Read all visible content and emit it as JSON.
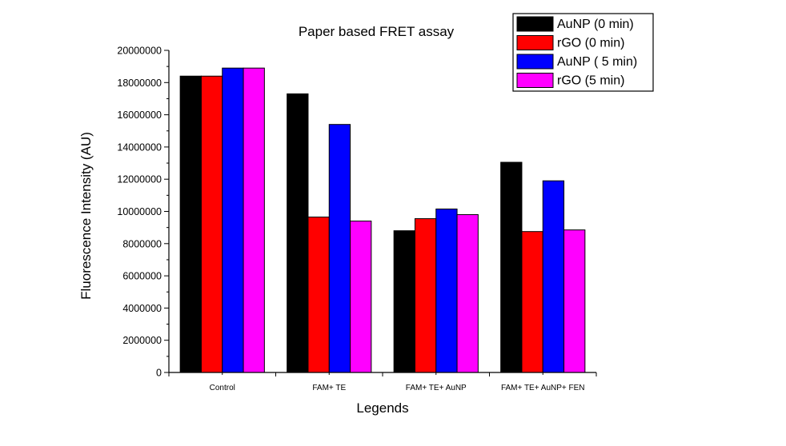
{
  "chart_data": {
    "type": "bar",
    "title": "Paper based FRET assay",
    "xlabel": "Legends",
    "ylabel": "Fluorescence Intensity (AU)",
    "ylim": [
      0,
      20000000
    ],
    "yticks": [
      "0",
      "2000000",
      "4000000",
      "6000000",
      "8000000",
      "10000000",
      "12000000",
      "14000000",
      "16000000",
      "18000000",
      "20000000"
    ],
    "ytick_values": [
      0,
      2000000,
      4000000,
      6000000,
      8000000,
      10000000,
      12000000,
      14000000,
      16000000,
      18000000,
      20000000
    ],
    "categories": [
      "Control",
      "FAM+ TE",
      "FAM+ TE+ AuNP",
      "FAM+ TE+ AuNP+ FEN"
    ],
    "series": [
      {
        "name": "AuNP (0 min)",
        "color": "#000000",
        "values": [
          18400000,
          17300000,
          8800000,
          13050000
        ]
      },
      {
        "name": "rGO (0 min)",
        "color": "#ff0000",
        "values": [
          18400000,
          9650000,
          9550000,
          8750000
        ]
      },
      {
        "name": "AuNP  ( 5 min)",
        "color": "#0000ff",
        "values": [
          18900000,
          15400000,
          10150000,
          11900000
        ]
      },
      {
        "name": "rGO (5 min)",
        "color": "#ff00ff",
        "values": [
          18900000,
          9400000,
          9800000,
          8850000
        ]
      }
    ],
    "legend_position": "top-right",
    "grid": false
  }
}
